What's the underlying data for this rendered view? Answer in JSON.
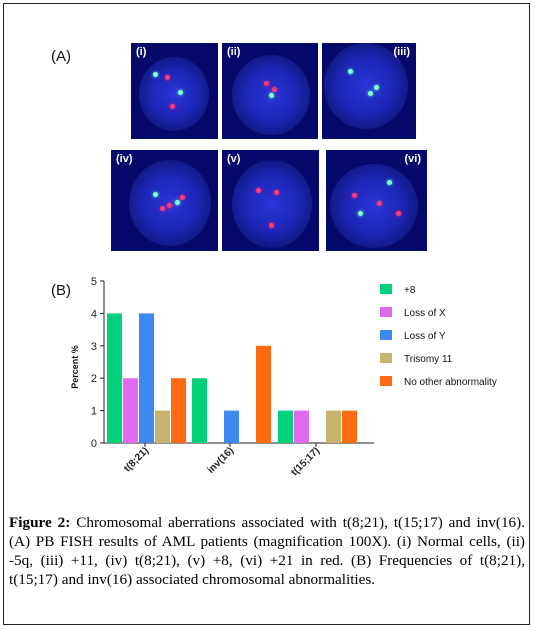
{
  "panel_a": {
    "label": "(A)",
    "cells": [
      {
        "id": "(i)",
        "spots": [
          {
            "c": "green",
            "x": 28,
            "y": 33
          },
          {
            "c": "red",
            "x": 42,
            "y": 36
          },
          {
            "c": "green",
            "x": 57,
            "y": 52
          },
          {
            "c": "red",
            "x": 48,
            "y": 66
          }
        ]
      },
      {
        "id": "(ii)",
        "spots": [
          {
            "c": "red",
            "x": 46,
            "y": 42
          },
          {
            "c": "red",
            "x": 55,
            "y": 48
          },
          {
            "c": "green",
            "x": 52,
            "y": 55
          }
        ]
      },
      {
        "id": "(iii)",
        "spots": [
          {
            "c": "green",
            "x": 30,
            "y": 30
          },
          {
            "c": "green",
            "x": 52,
            "y": 53
          },
          {
            "c": "green",
            "x": 58,
            "y": 46
          }
        ]
      },
      {
        "id": "(iv)",
        "spots": [
          {
            "c": "green",
            "x": 42,
            "y": 44
          },
          {
            "c": "red",
            "x": 55,
            "y": 55
          },
          {
            "c": "green",
            "x": 62,
            "y": 52
          },
          {
            "c": "red",
            "x": 67,
            "y": 47
          },
          {
            "c": "red",
            "x": 48,
            "y": 58
          }
        ]
      },
      {
        "id": "(v)",
        "spots": [
          {
            "c": "red",
            "x": 38,
            "y": 40
          },
          {
            "c": "red",
            "x": 56,
            "y": 42
          },
          {
            "c": "red",
            "x": 51,
            "y": 75
          }
        ]
      },
      {
        "id": "(vi)",
        "spots": [
          {
            "c": "red",
            "x": 28,
            "y": 45
          },
          {
            "c": "green",
            "x": 63,
            "y": 32
          },
          {
            "c": "red",
            "x": 53,
            "y": 53
          },
          {
            "c": "green",
            "x": 34,
            "y": 63
          },
          {
            "c": "red",
            "x": 72,
            "y": 63
          }
        ]
      }
    ]
  },
  "panel_b": {
    "label": "(B)"
  },
  "chart_data": {
    "type": "bar",
    "categories": [
      "t(8;21)",
      "inv(16)",
      "t(15;17)"
    ],
    "series": [
      {
        "name": "+8",
        "color": "#00d07a",
        "values": [
          4,
          2,
          1
        ]
      },
      {
        "name": "Loss of X",
        "color": "#e06aee",
        "values": [
          2,
          0,
          1
        ]
      },
      {
        "name": "Loss of Y",
        "color": "#3d89f0",
        "values": [
          4,
          1,
          0
        ]
      },
      {
        "name": "Trisomy 11",
        "color": "#c6b36e",
        "values": [
          1,
          0,
          1
        ]
      },
      {
        "name": "No other abnormality",
        "color": "#ff6a12",
        "values": [
          2,
          3,
          1
        ]
      }
    ],
    "ylabel": "Percent %",
    "xlabel": "",
    "ylim": [
      0,
      5
    ],
    "yticks": [
      "0",
      "1",
      "2",
      "3",
      "4",
      "5"
    ],
    "legend": "right",
    "grid": false
  },
  "caption": {
    "label": "Figure 2:",
    "text": " Chromosomal aberrations associated with t(8;21), t(15;17) and inv(16). (A) PB FISH results of AML patients (magnification 100X). (i) Normal cells, (ii) -5q, (iii) +11, (iv) t(8;21), (v) +8, (vi) +21 in red. (B) Frequencies of t(8;21), t(15;17) and inv(16) associated chromosomal abnormalities."
  }
}
